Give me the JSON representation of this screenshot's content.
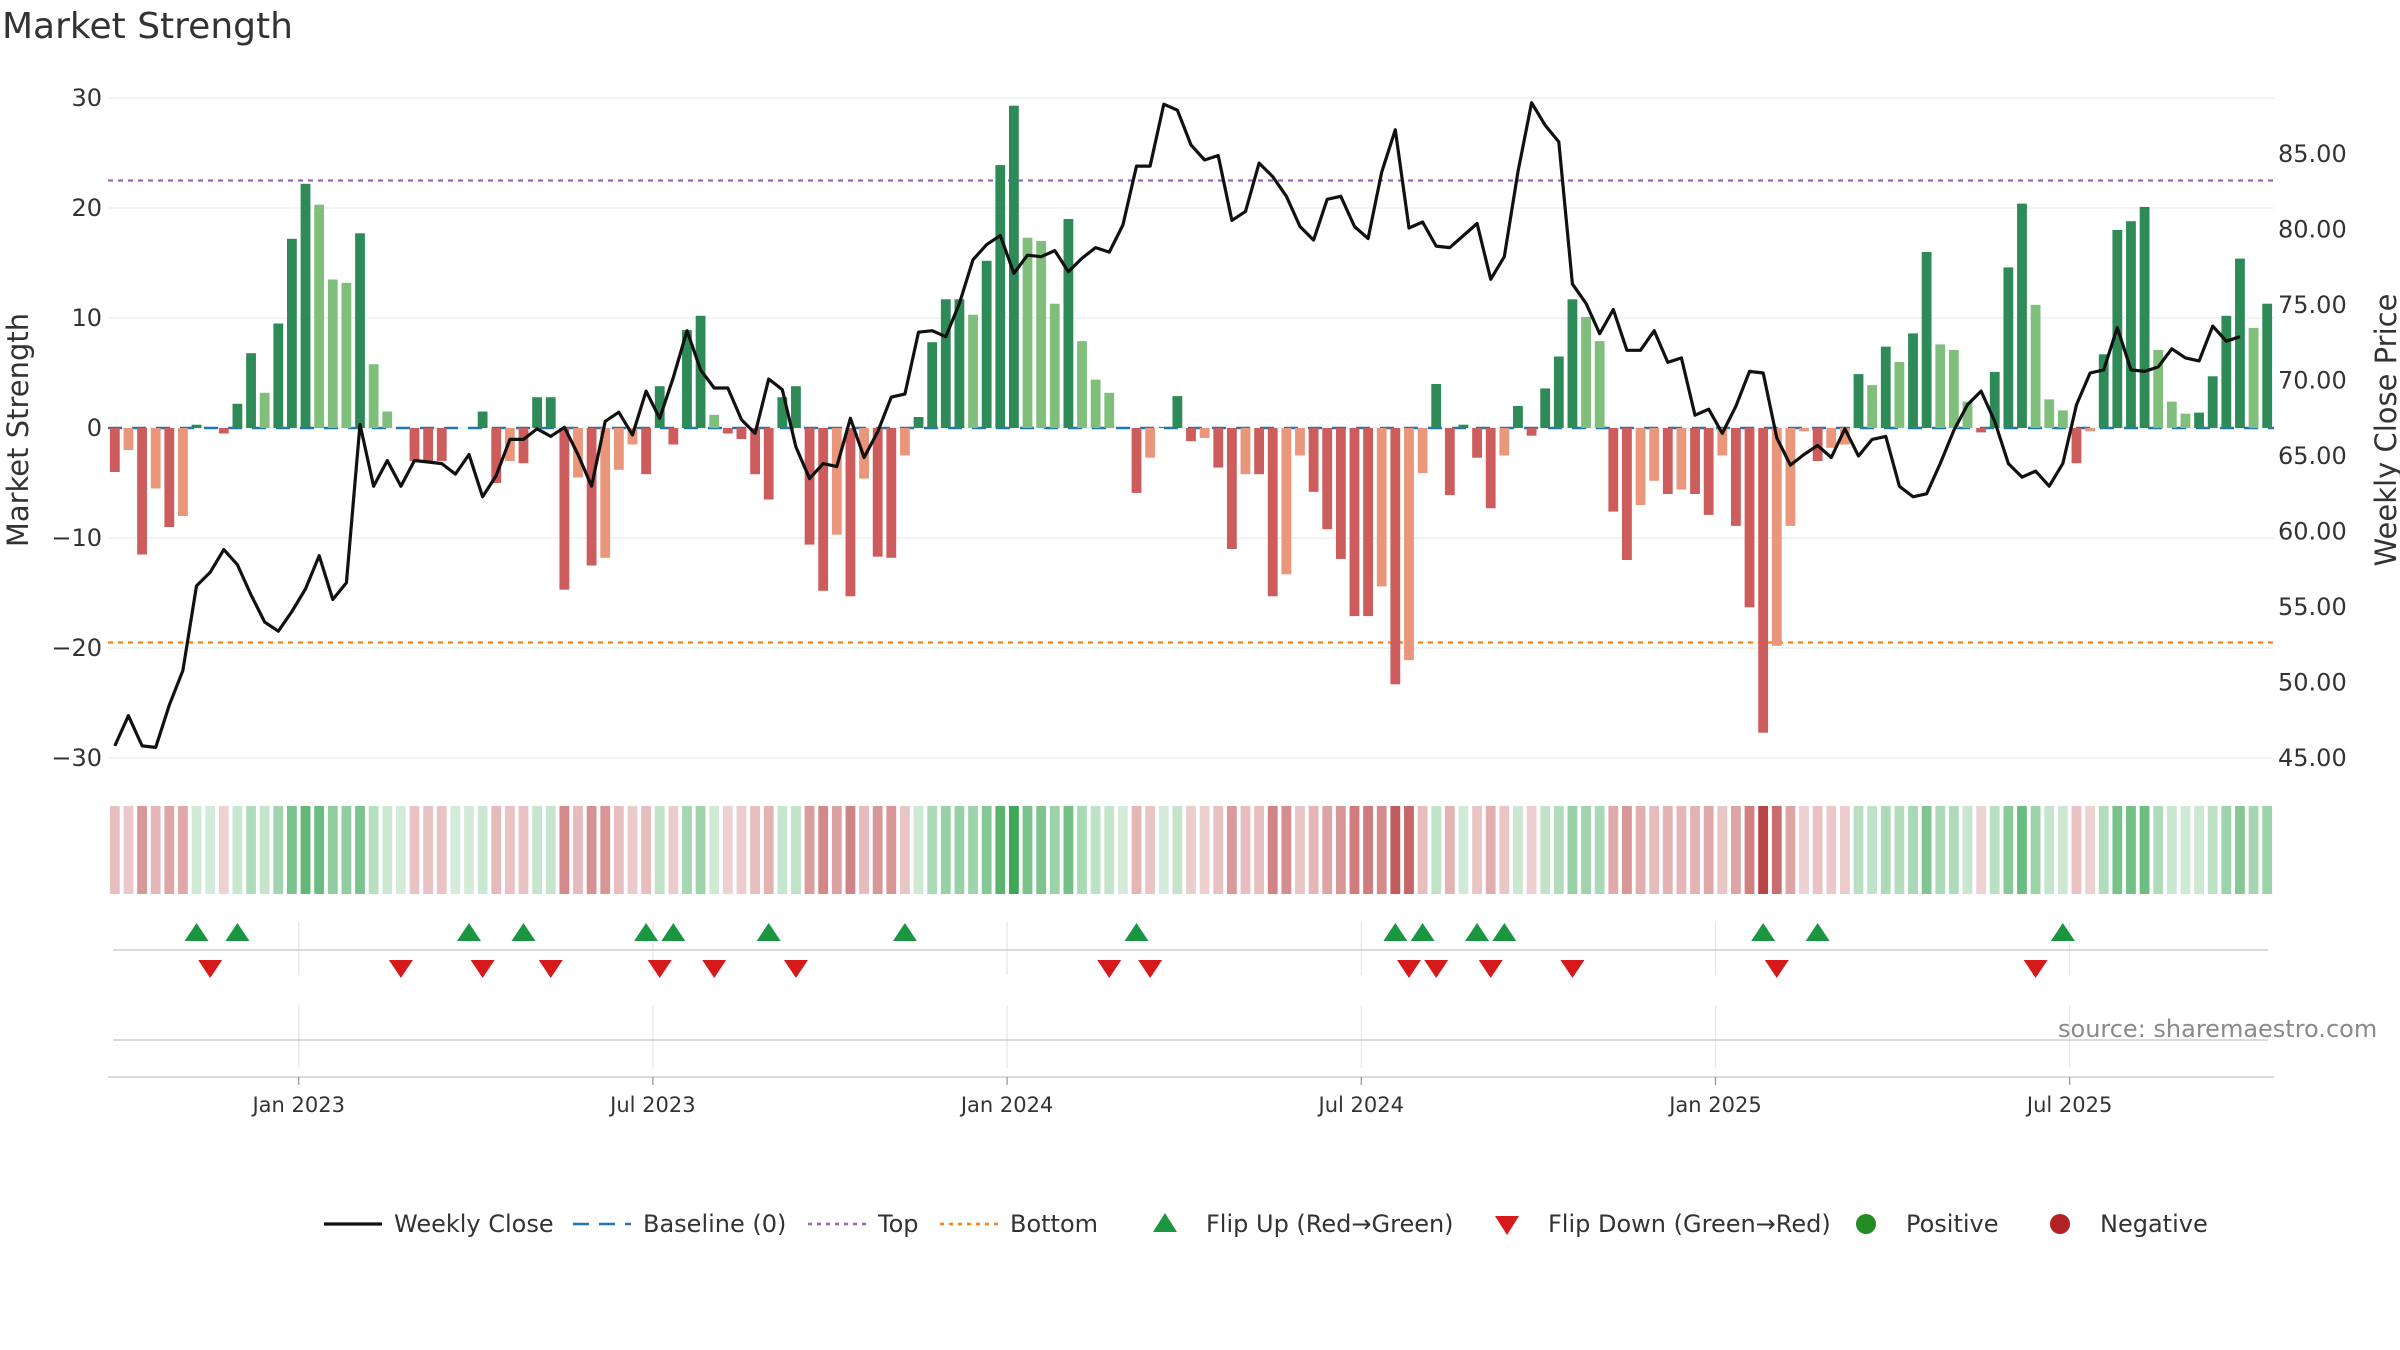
{
  "chart_data": {
    "type": "bar",
    "title": "Market Strength",
    "source": "source: sharemaestro.com",
    "ylabel_left": "Market Strength",
    "ylabel_right": "Weekly Close Price",
    "ylim_left": [
      -30,
      30
    ],
    "yticks_left": [
      30,
      20,
      10,
      0,
      -10,
      -20,
      -30
    ],
    "ytick_labels_left": [
      "30",
      "20",
      "10",
      "0",
      "−10",
      "−20",
      "−30"
    ],
    "ylim_right": [
      45,
      85
    ],
    "yticks_right": [
      85,
      80,
      75,
      70,
      65,
      60,
      55,
      50,
      45
    ],
    "ytick_labels_right": [
      "85.00",
      "80.00",
      "75.00",
      "70.00",
      "65.00",
      "60.00",
      "55.00",
      "50.00",
      "45.00"
    ],
    "x_ticks": [
      {
        "week": 14,
        "label": "Jan 2023"
      },
      {
        "week": 40,
        "label": "Jul 2023"
      },
      {
        "week": 66,
        "label": "Jan 2024"
      },
      {
        "week": 92,
        "label": "Jul 2024"
      },
      {
        "week": 118,
        "label": "Jan 2025"
      },
      {
        "week": 144,
        "label": "Jul 2025"
      }
    ],
    "top_line": 22.5,
    "bottom_line": -19.5,
    "grid": true,
    "colors": {
      "positive_strong": "#2e8b57",
      "positive_weak": "#7fbf7b",
      "negative_strong": "#cd5c5c",
      "negative_weak": "#e9967a",
      "close_line": "#111111",
      "baseline": "#1f77b4",
      "top": "#9467bd",
      "bottom": "#ff7f0e",
      "flip_up": "#1a9641",
      "flip_down": "#d7191c",
      "legend_positive": "#228b22",
      "legend_negative": "#b22222"
    },
    "strength": [
      -4,
      -2,
      -11.5,
      -5.5,
      -9,
      -8,
      0.3,
      0,
      -0.5,
      2.2,
      6.8,
      3.2,
      9.5,
      17.2,
      22.2,
      20.3,
      13.5,
      13.2,
      17.7,
      5.8,
      1.5,
      0,
      -3,
      -3,
      -3,
      0,
      0,
      1.5,
      -5,
      -3,
      -3.2,
      2.8,
      2.8,
      -14.7,
      -4.5,
      -12.5,
      -11.8,
      -3.8,
      -1.5,
      -4.2,
      3.8,
      -1.5,
      8.9,
      10.2,
      1.2,
      -0.5,
      -1,
      -4.2,
      -6.5,
      2.8,
      3.8,
      -10.6,
      -14.8,
      -9.7,
      -15.3,
      -4.6,
      -11.7,
      -11.8,
      -2.5,
      1,
      7.8,
      11.7,
      11.7,
      10.3,
      15.2,
      23.9,
      29.3,
      17.3,
      17,
      11.3,
      19,
      7.9,
      4.4,
      3.2,
      0,
      -5.9,
      -2.7,
      0.1,
      2.9,
      -1.2,
      -0.9,
      -3.6,
      -11,
      -4.2,
      -4.2,
      -15.3,
      -13.3,
      -2.5,
      -5.8,
      -9.2,
      -11.9,
      -17.1,
      -17.1,
      -14.4,
      -23.3,
      -21.1,
      -4.1,
      4,
      -6.1,
      0.3,
      -2.7,
      -7.3,
      -2.5,
      2,
      -0.7,
      3.6,
      6.5,
      11.7,
      10.1,
      7.9,
      -7.6,
      -12,
      -7,
      -4.8,
      -6,
      -5.6,
      -6,
      -7.9,
      -2.5,
      -8.9,
      -16.3,
      -27.7,
      -19.8,
      -8.9,
      -0.3,
      -3,
      -1.8,
      -1.5,
      4.9,
      3.9,
      7.4,
      6,
      8.6,
      16,
      7.6,
      7.1,
      2.4,
      -0.4,
      5.1,
      14.6,
      20.4,
      11.2,
      2.6,
      1.6,
      -3.2,
      -0.3,
      6.7,
      18,
      18.8,
      20.1,
      7.1,
      2.4,
      1.3,
      1.4,
      4.7,
      10.2,
      15.4,
      9.1,
      11.3
    ],
    "weekly_close": [
      45.8,
      47.8,
      45.8,
      45.7,
      48.5,
      50.8,
      56.4,
      57.3,
      58.8,
      57.8,
      55.8,
      54,
      53.4,
      54.7,
      56.2,
      58.4,
      55.5,
      56.6,
      67.1,
      63,
      64.7,
      63,
      64.7,
      64.6,
      64.5,
      63.8,
      65.1,
      62.3,
      63.7,
      66.1,
      66.1,
      66.8,
      66.3,
      66.9,
      65.1,
      63,
      67.3,
      67.9,
      66.4,
      69.3,
      67.5,
      70.2,
      73.3,
      70.7,
      69.5,
      69.5,
      67.4,
      66.5,
      70.1,
      69.4,
      65.6,
      63.5,
      64.5,
      64.3,
      67.5,
      64.9,
      66.6,
      68.9,
      69.1,
      73.2,
      73.3,
      72.9,
      75.1,
      78,
      79,
      79.6,
      77.1,
      78.3,
      78.2,
      78.6,
      77.2,
      78.1,
      78.8,
      78.5,
      80.3,
      84.2,
      84.2,
      88.3,
      87.9,
      85.6,
      84.6,
      84.9,
      80.6,
      81.2,
      84.4,
      83.5,
      82.2,
      80.2,
      79.3,
      82,
      82.2,
      80.2,
      79.4,
      83.8,
      86.6,
      80.1,
      80.5,
      78.9,
      78.8,
      79.6,
      80.4,
      76.7,
      78.2,
      83.8,
      88.4,
      86.9,
      85.8,
      76.4,
      75.1,
      73.1,
      74.7,
      72,
      72,
      73.3,
      71.2,
      71.5,
      67.7,
      68.1,
      66.5,
      68.3,
      70.6,
      70.5,
      66.2,
      64.4,
      65.1,
      65.7,
      64.9,
      66.8,
      65,
      66.1,
      66.3,
      63,
      62.3,
      62.5,
      64.5,
      66.7,
      68.4,
      69.3,
      67.3,
      64.5,
      63.6,
      64,
      63,
      64.5,
      68.4,
      70.5,
      70.7,
      73.5,
      70.7,
      70.6,
      70.9,
      72.1,
      71.5,
      71.3,
      73.6,
      72.6,
      72.9
    ],
    "flip_up_weeks": [
      6,
      9,
      26,
      30,
      39,
      41,
      48,
      58,
      75,
      94,
      96,
      100,
      102,
      121,
      125,
      143
    ],
    "flip_down_weeks": [
      7,
      21,
      27,
      32,
      40,
      44,
      50,
      73,
      76,
      95,
      97,
      101,
      107,
      122,
      141
    ],
    "legend": [
      {
        "label": "Weekly Close",
        "kind": "line"
      },
      {
        "label": "Baseline (0)",
        "kind": "dash"
      },
      {
        "label": "Top",
        "kind": "dot-top"
      },
      {
        "label": "Bottom",
        "kind": "dot-bottom"
      },
      {
        "label": "Flip Up (Red→Green)",
        "kind": "tri-up"
      },
      {
        "label": "Flip Down (Green→Red)",
        "kind": "tri-down"
      },
      {
        "label": "Positive",
        "kind": "circle-pos"
      },
      {
        "label": "Negative",
        "kind": "circle-neg"
      }
    ]
  }
}
